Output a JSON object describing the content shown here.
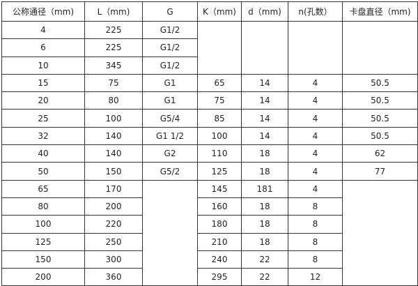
{
  "table": {
    "headers": [
      "公称通径（mm)",
      "L（mm)",
      "G",
      "K（mm)",
      "d（mm)",
      "n(孔数）",
      "卡盘直径（mm)"
    ],
    "rows": [
      [
        "4",
        "225",
        "G1/2",
        "",
        "",
        "",
        ""
      ],
      [
        "6",
        "225",
        "G1/2",
        "",
        "",
        "",
        ""
      ],
      [
        "10",
        "345",
        "G1/2",
        "",
        "",
        "",
        ""
      ],
      [
        "15",
        "75",
        "G1",
        "65",
        "14",
        "4",
        "50.5"
      ],
      [
        "20",
        "80",
        "G1",
        "75",
        "14",
        "4",
        "50.5"
      ],
      [
        "25",
        "100",
        "G5/4",
        "85",
        "14",
        "4",
        "50.5"
      ],
      [
        "32",
        "140",
        "G1  1/2",
        "100",
        "14",
        "4",
        "50.5"
      ],
      [
        "40",
        "140",
        "G2",
        "110",
        "18",
        "4",
        "62"
      ],
      [
        "50",
        "150",
        "G5/2",
        "125",
        "18",
        "4",
        "77"
      ],
      [
        "65",
        "170",
        "",
        "145",
        "181",
        "4",
        ""
      ],
      [
        "80",
        "200",
        "",
        "160",
        "18",
        "8",
        ""
      ],
      [
        "100",
        "220",
        "",
        "180",
        "18",
        "8",
        ""
      ],
      [
        "125",
        "250",
        "",
        "210",
        "18",
        "8",
        ""
      ],
      [
        "150",
        "300",
        "",
        "240",
        "22",
        "8",
        ""
      ],
      [
        "200",
        "360",
        "",
        "295",
        "22",
        "12",
        ""
      ]
    ]
  }
}
